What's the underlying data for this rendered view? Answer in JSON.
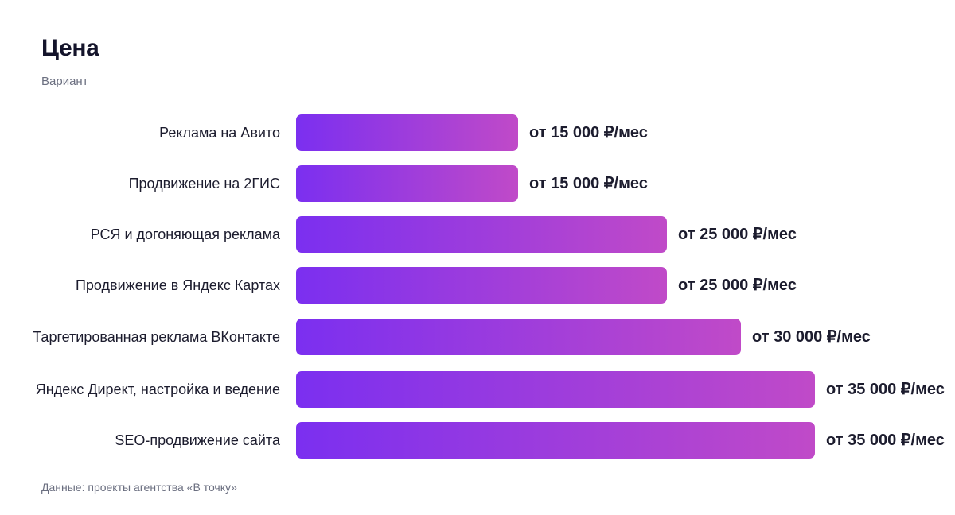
{
  "header": {
    "title": "Цена",
    "subtitle": "Вариант"
  },
  "footer": {
    "source": "Данные: проекты агентства «В точку»"
  },
  "colors": {
    "bar_start": "#7b2ff0",
    "bar_end": "#c04ac8"
  },
  "chart_data": {
    "type": "bar",
    "orientation": "horizontal",
    "title": "Цена",
    "subtitle": "Вариант",
    "categories": [
      "Реклама на Авито",
      "Продвижение на 2ГИС",
      "РСЯ и догоняющая реклама",
      "Продвижение в Яндекс Картах",
      "Таргетированная реклама ВКонтакте",
      "Яндекс Директ, настройка и ведение",
      "SEO-продвижение сайта"
    ],
    "values": [
      15000,
      15000,
      25000,
      25000,
      30000,
      35000,
      35000
    ],
    "value_labels": [
      "от 15 000 ₽/мес",
      "от 15 000 ₽/мес",
      "от 25 000 ₽/мес",
      "от 25 000 ₽/мес",
      "от 30 000 ₽/мес",
      "от 35 000 ₽/мес",
      "от 35 000 ₽/мес"
    ],
    "xlim": [
      0,
      35000
    ],
    "grid": false,
    "legend": "none"
  }
}
